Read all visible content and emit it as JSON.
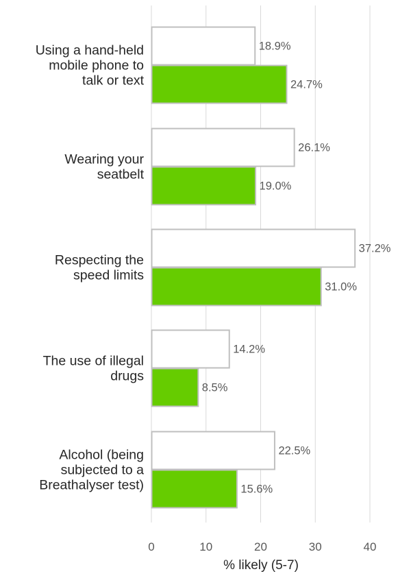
{
  "chart_data": {
    "type": "bar",
    "orientation": "horizontal",
    "categories": [
      [
        "Using a hand-held",
        "mobile phone to",
        "talk or text"
      ],
      [
        "Wearing your",
        "seatbelt"
      ],
      [
        "Respecting the",
        "speed limits"
      ],
      [
        "The use of illegal",
        "drugs"
      ],
      [
        "Alcohol (being",
        "subjected to a",
        "Breathalyser test)"
      ]
    ],
    "series": [
      {
        "values": [
          18.9,
          26.1,
          37.2,
          14.2,
          22.5
        ],
        "labels": [
          "18.9%",
          "26.1%",
          "37.2%",
          "14.2%",
          "22.5%"
        ],
        "color": "#ffffff",
        "stroke": "#bfbfbf"
      },
      {
        "values": [
          24.7,
          19.0,
          31.0,
          8.5,
          15.6
        ],
        "labels": [
          "24.7%",
          "19.0%",
          "31.0%",
          "8.5%",
          "15.6%"
        ],
        "color": "#66cc00",
        "stroke": "#bfbfbf"
      }
    ],
    "xlabel": "% likely (5-7)",
    "xlim": [
      0,
      40
    ],
    "xticks": [
      "0",
      "10",
      "20",
      "30",
      "40"
    ],
    "grid": "vertical"
  }
}
